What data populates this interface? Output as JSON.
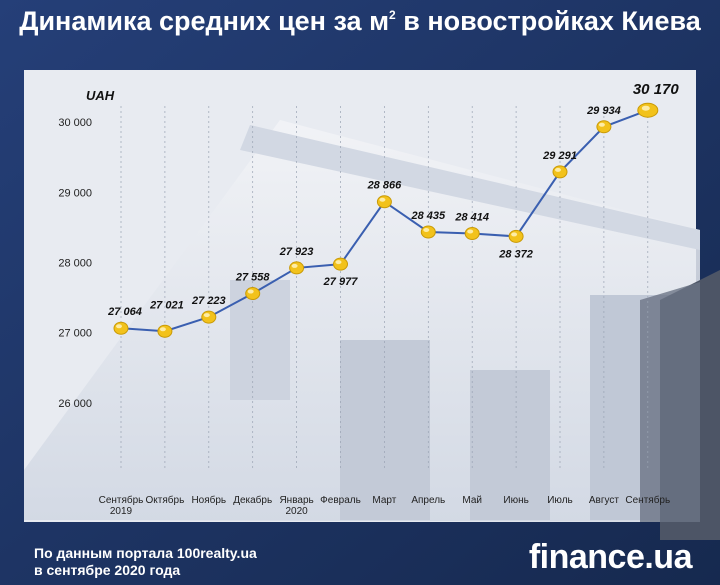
{
  "title_main": "Динамика средних цен за м",
  "title_sup": "2",
  "title_rest": "в новостройках Киева",
  "source": {
    "line1": "По данным портала 100realty.ua",
    "line2": "в сентябре 2020 года"
  },
  "logo": "finance.ua",
  "colors": {
    "line": "#3a5fb0",
    "marker": "#f2c21b",
    "panel": "#e9ecf3",
    "background": "#1d3567"
  },
  "chart_data": {
    "type": "line",
    "ylabel": "UAH",
    "ylim": [
      25700,
      30600
    ],
    "yticks": [
      26000,
      27000,
      28000,
      29000,
      30000
    ],
    "ytick_labels": [
      "26 000",
      "27 000",
      "28 000",
      "29 000",
      "30 000"
    ],
    "grid": "vertical",
    "categories": [
      [
        "Сентябрь",
        "2019"
      ],
      [
        "Октябрь"
      ],
      [
        "Ноябрь"
      ],
      [
        "Декабрь"
      ],
      [
        "Январь",
        "2020"
      ],
      [
        "Февраль"
      ],
      [
        "Март"
      ],
      [
        "Апрель"
      ],
      [
        "Май"
      ],
      [
        "Июнь"
      ],
      [
        "Июль"
      ],
      [
        "Август"
      ],
      [
        "Сентябрь"
      ]
    ],
    "values": [
      27064,
      27021,
      27223,
      27558,
      27923,
      27977,
      28866,
      28435,
      28414,
      28372,
      29291,
      29934,
      30170
    ],
    "value_labels": [
      "27 064",
      "27 021",
      "27 223",
      "27 558",
      "27 923",
      "27 977",
      "28 866",
      "28 435",
      "28 414",
      "28 372",
      "29 291",
      "29 934",
      "30 170"
    ]
  }
}
